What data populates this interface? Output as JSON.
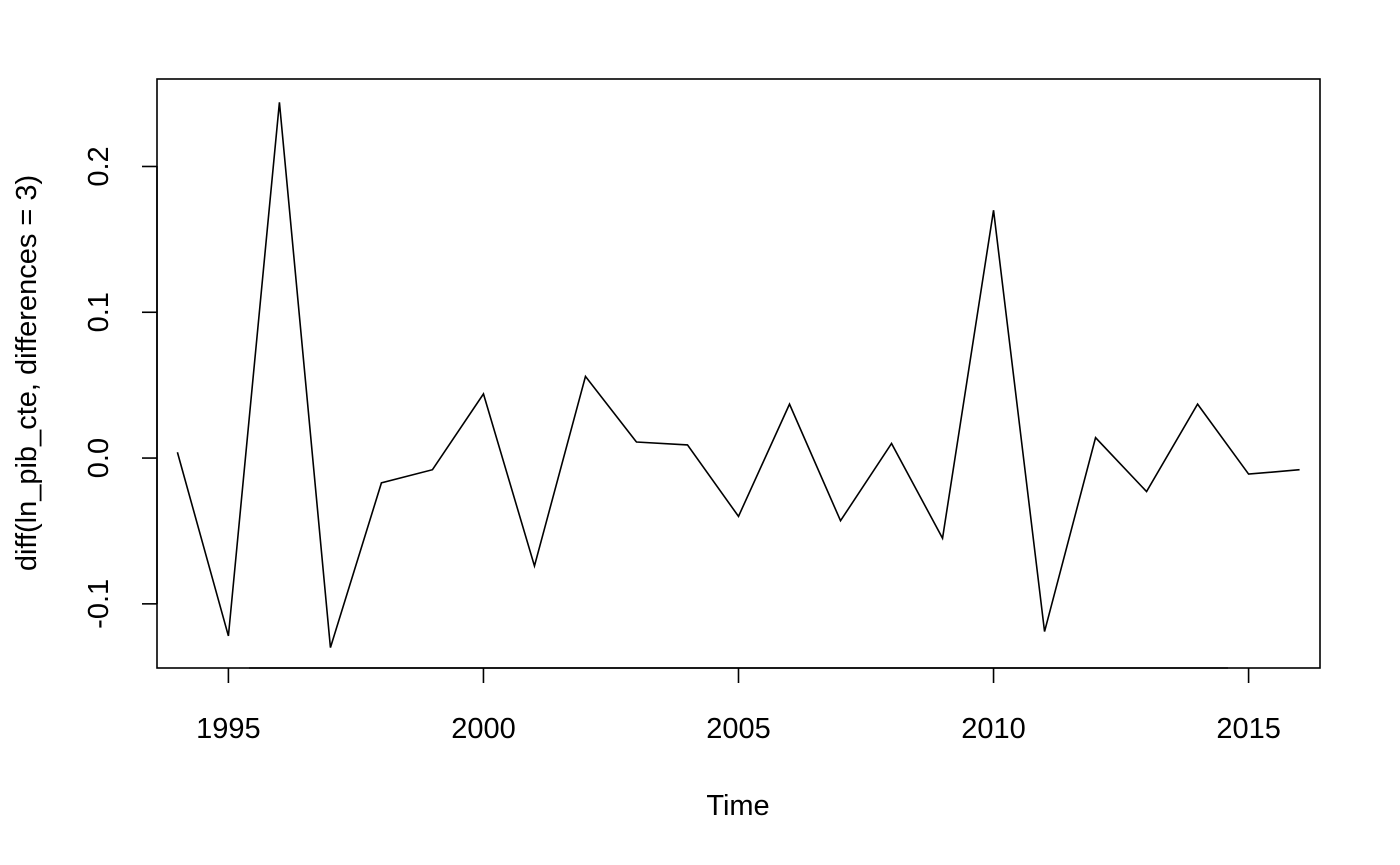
{
  "chart_data": {
    "type": "line",
    "title": "",
    "xlabel": "Time",
    "ylabel": "diff(ln_pib_cte, differences = 3)",
    "xlim": [
      1993.6,
      2016.4
    ],
    "ylim": [
      -0.144,
      0.26
    ],
    "x_ticks": [
      1995,
      2000,
      2005,
      2010,
      2015
    ],
    "x_tick_labels": [
      "1995",
      "2000",
      "2005",
      "2010",
      "2015"
    ],
    "y_ticks": [
      -0.1,
      0.0,
      0.1,
      0.2
    ],
    "y_tick_labels": [
      "-0.1",
      "0.0",
      "0.1",
      "0.2"
    ],
    "grid": false,
    "legend": "none",
    "colors": {
      "line": "#000000",
      "background": "#ffffff"
    },
    "series": [
      {
        "x": [
          1994,
          1995,
          1996,
          1997,
          1998,
          1999,
          2000,
          2001,
          2002,
          2003,
          2004,
          2005,
          2006,
          2007,
          2008,
          2009,
          2010,
          2011,
          2012,
          2013,
          2014,
          2015,
          2016
        ],
        "values": [
          0.004,
          -0.122,
          0.244,
          -0.13,
          -0.017,
          -0.008,
          0.044,
          -0.074,
          0.056,
          0.011,
          0.009,
          -0.04,
          0.037,
          -0.043,
          0.01,
          -0.055,
          0.17,
          -0.119,
          0.014,
          -0.023,
          0.037,
          -0.011,
          -0.008
        ]
      }
    ]
  }
}
